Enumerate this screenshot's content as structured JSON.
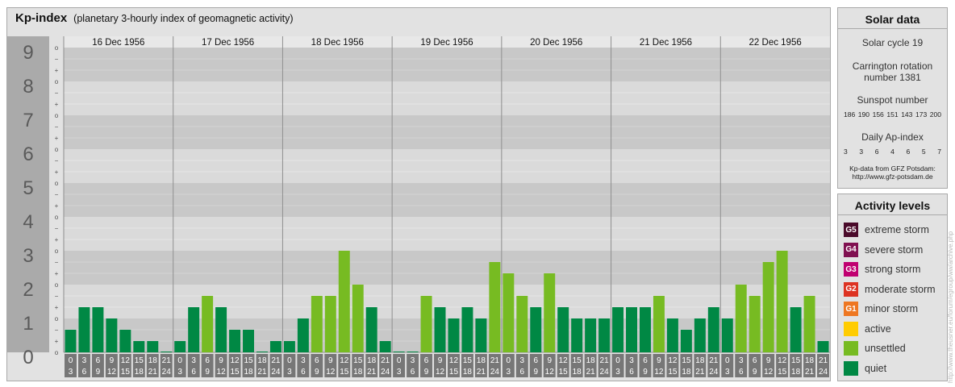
{
  "title": "Kp-index",
  "subtitle": "(planetary 3-hourly index of geomagnetic activity)",
  "chart_data": {
    "type": "bar",
    "ylim": [
      0,
      9
    ],
    "y_major_labels": [
      "0",
      "1",
      "2",
      "3",
      "4",
      "5",
      "6",
      "7",
      "8",
      "9"
    ],
    "y_minor_labels": [
      "o",
      "+",
      "−",
      "o"
    ],
    "days": [
      "16 Dec 1956",
      "17 Dec 1956",
      "18 Dec 1956",
      "19 Dec 1956",
      "20 Dec 1956",
      "21 Dec 1956",
      "22 Dec 1956"
    ],
    "hour_starts": [
      "0",
      "3",
      "6",
      "9",
      "12",
      "15",
      "18",
      "21"
    ],
    "hour_ends": [
      "3",
      "6",
      "9",
      "12",
      "15",
      "18",
      "21",
      "24"
    ],
    "values": [
      0.667,
      1.333,
      1.333,
      1.0,
      0.667,
      0.333,
      0.333,
      0.0,
      0.333,
      1.333,
      1.667,
      1.333,
      0.667,
      0.667,
      0.0,
      0.333,
      0.333,
      1.0,
      1.667,
      1.667,
      3.0,
      2.0,
      1.333,
      0.333,
      0.0,
      0.0,
      1.667,
      1.333,
      1.0,
      1.333,
      1.0,
      2.667,
      2.333,
      1.667,
      1.333,
      2.333,
      1.333,
      1.0,
      1.0,
      1.0,
      1.333,
      1.333,
      1.333,
      1.667,
      1.0,
      0.667,
      1.0,
      1.333,
      1.0,
      2.0,
      1.667,
      2.667,
      3.0,
      1.333,
      1.667,
      0.333
    ],
    "colors": {
      "quiet": "#008844",
      "unsettled": "#77bb22",
      "active": "#ffcc00",
      "plot_band_dark": "#c8c8c8",
      "plot_band_light": "#dadada",
      "hour_box": "#777777",
      "axis_label_band": "#aaaaaa"
    }
  },
  "solar": {
    "title": "Solar data",
    "cycle": "Solar cycle 19",
    "carrington_line1": "Carrington rotation",
    "carrington_line2": "number 1381",
    "sunspot_label": "Sunspot number",
    "sunspot_values": [
      "186",
      "190",
      "156",
      "151",
      "143",
      "173",
      "200"
    ],
    "ap_label": "Daily Ap-index",
    "ap_values": [
      "3",
      "3",
      "6",
      "4",
      "6",
      "5",
      "7"
    ],
    "source_line1": "Kp-data from GFZ Potsdam:",
    "source_line2": "http://www.gfz-potsdam.de"
  },
  "activity": {
    "title": "Activity levels",
    "levels": [
      {
        "code": "G5",
        "label": "extreme storm",
        "color": "#4a0a2a"
      },
      {
        "code": "G4",
        "label": "severe storm",
        "color": "#801050"
      },
      {
        "code": "G3",
        "label": "strong storm",
        "color": "#c00070"
      },
      {
        "code": "G2",
        "label": "moderate storm",
        "color": "#dd3322"
      },
      {
        "code": "G1",
        "label": "minor storm",
        "color": "#ee7722"
      },
      {
        "code": "",
        "label": "active",
        "color": "#ffcc00"
      },
      {
        "code": "",
        "label": "unsettled",
        "color": "#77bb22"
      },
      {
        "code": "",
        "label": "quiet",
        "color": "#008844"
      }
    ]
  },
  "credit": "http://www.theusner.eu/forum/egroup/ww/archive.php"
}
